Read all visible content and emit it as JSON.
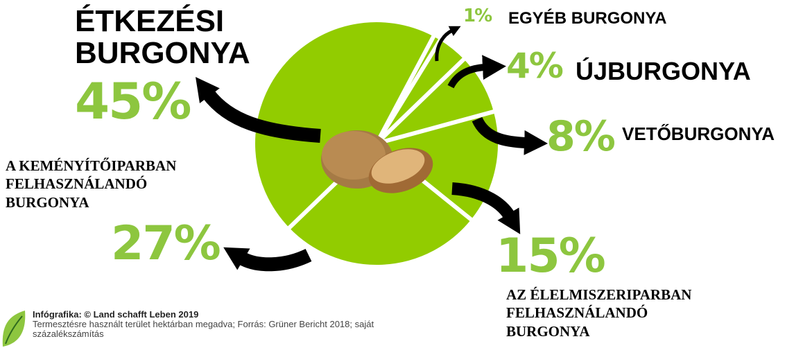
{
  "chart_data": {
    "type": "pie",
    "categories": [
      "EGYÉB BURGONYA",
      "ÚJBURGONYA",
      "VETŐBURGONYA",
      "AZ ÉLELMISZERIPARBAN FELHASZNÁLANDÓ BURGONYA",
      "A KEMÉNYÍTŐIPARBAN FELHASZNÁLANDÓ BURGONYA",
      "ÉTKEZÉSI BURGONYA"
    ],
    "values": [
      1,
      4,
      8,
      15,
      27,
      45
    ],
    "value_labels": [
      "1%",
      "4%",
      "8%",
      "15%",
      "27%",
      "45%"
    ],
    "color": "#92cc00",
    "label_color": "#8dc63f",
    "credit": "Infógrafika: © Land schafft Leben 2019",
    "source": "Termesztésre használt terület hektárban megadva; Forrás: Grüner Bericht 2018; saját százalékszámítás"
  }
}
